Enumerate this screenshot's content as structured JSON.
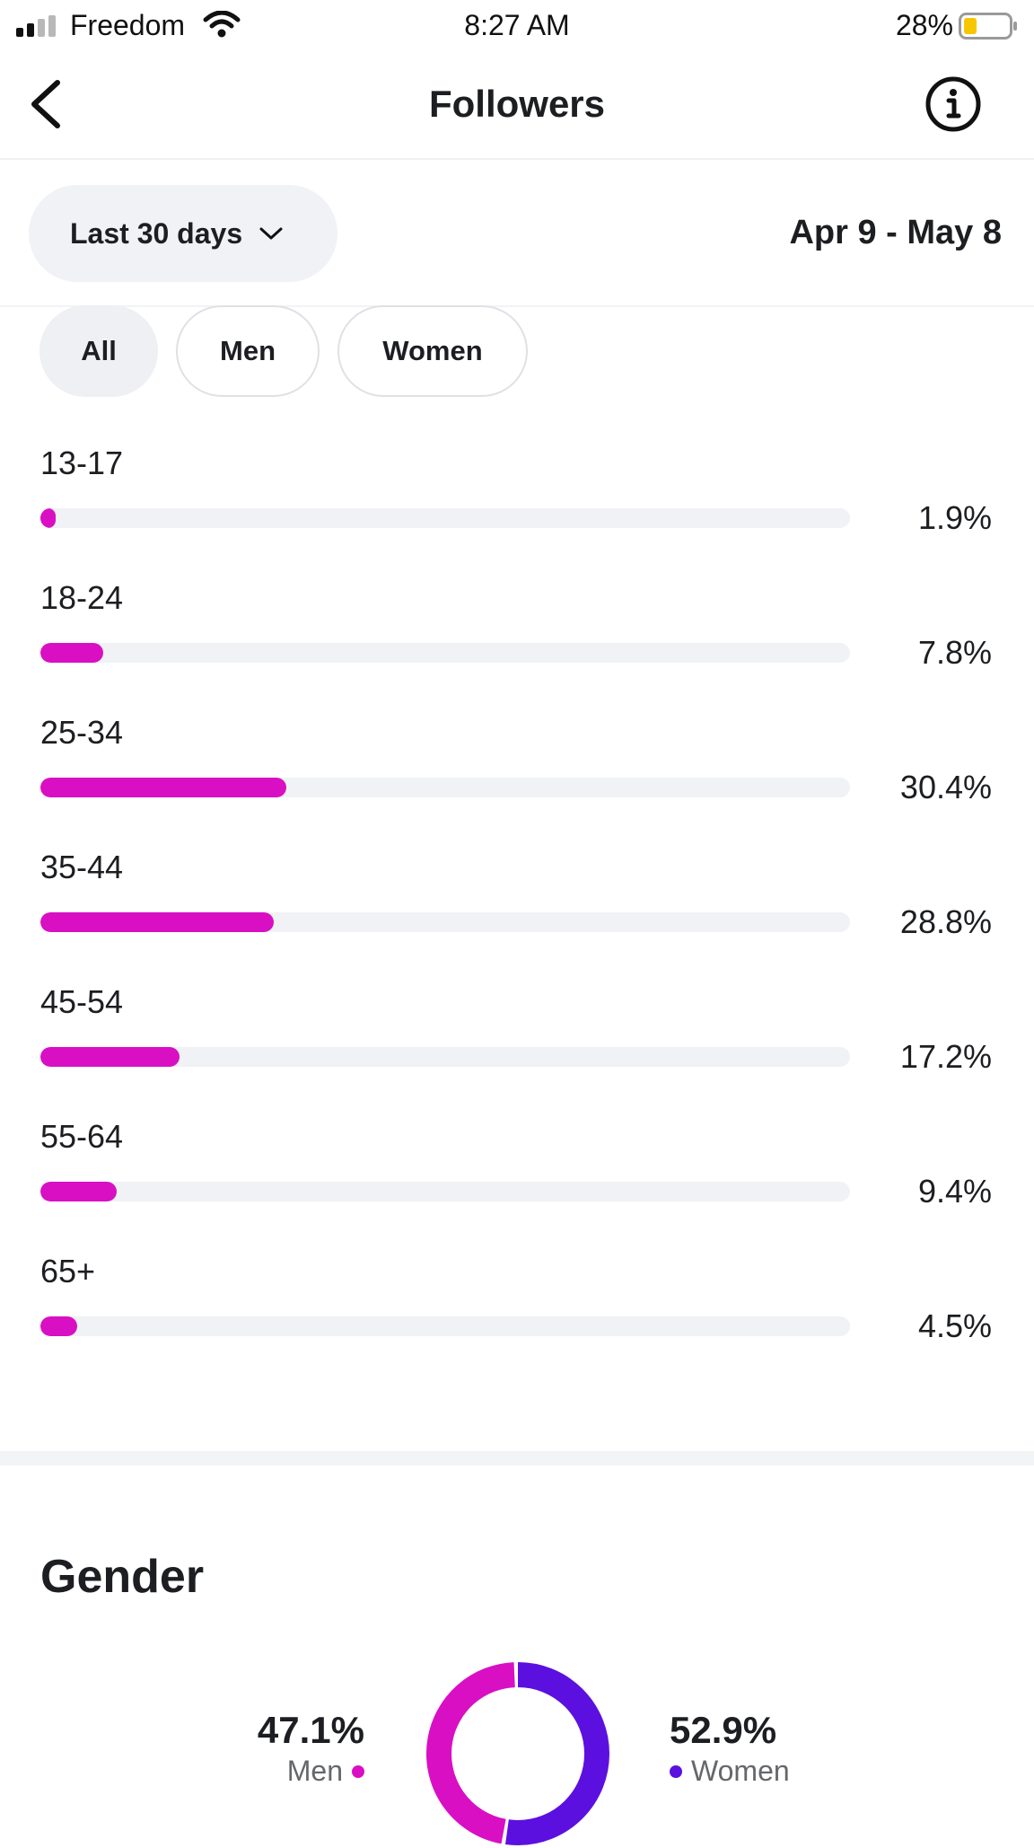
{
  "status_bar": {
    "carrier": "Freedom",
    "time": "8:27 AM",
    "battery": "28%",
    "icons": [
      "signal-icon",
      "wifi-icon",
      "battery-icon"
    ]
  },
  "nav": {
    "title": "Followers",
    "back_icon": "chevron-left-icon",
    "info_icon": "info-icon"
  },
  "filter": {
    "range_label": "Last 30 days",
    "range_icon": "chevron-down-icon",
    "date_range": "Apr 9 - May 8"
  },
  "segments": [
    {
      "label": "All",
      "active": true
    },
    {
      "label": "Men",
      "active": false
    },
    {
      "label": "Women",
      "active": false
    }
  ],
  "age_groups": [
    {
      "label": "13-17",
      "percent_text": "1.9%",
      "value": 1.9
    },
    {
      "label": "18-24",
      "percent_text": "7.8%",
      "value": 7.8
    },
    {
      "label": "25-34",
      "percent_text": "30.4%",
      "value": 30.4
    },
    {
      "label": "35-44",
      "percent_text": "28.8%",
      "value": 28.8
    },
    {
      "label": "45-54",
      "percent_text": "17.2%",
      "value": 17.2
    },
    {
      "label": "55-64",
      "percent_text": "9.4%",
      "value": 9.4
    },
    {
      "label": "65+",
      "percent_text": "4.5%",
      "value": 4.5
    }
  ],
  "gender": {
    "title": "Gender",
    "men": {
      "label": "Men",
      "percent_text": "47.1%",
      "value": 47.1
    },
    "women": {
      "label": "Women",
      "percent_text": "52.9%",
      "value": 52.9
    }
  },
  "colors": {
    "accent_magenta": "#d90fc3",
    "accent_purple": "#5b10e0",
    "track": "#f0f2f5"
  }
}
